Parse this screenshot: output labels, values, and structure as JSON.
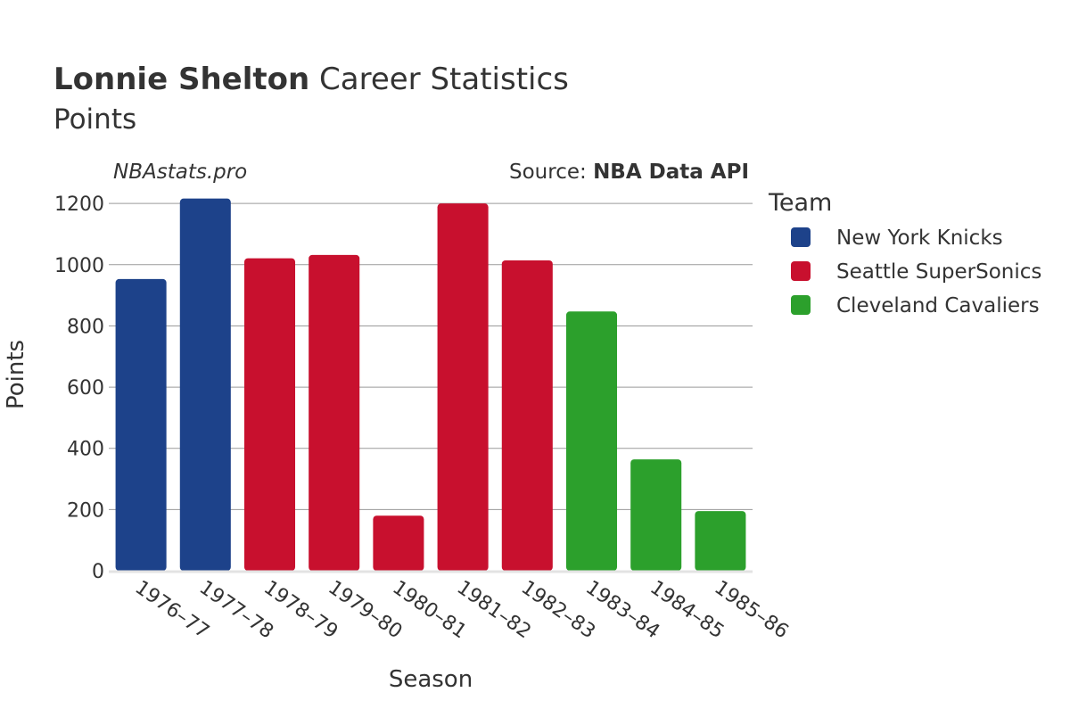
{
  "header": {
    "title_bold": "Lonnie Shelton",
    "title_rest": " Career Statistics",
    "subtitle": "Points",
    "watermark": "NBAstats.pro",
    "source_prefix": "Source: ",
    "source_bold": "NBA Data API"
  },
  "chart_data": {
    "type": "bar",
    "xlabel": "Season",
    "ylabel": "Points",
    "ylim": [
      0,
      1250
    ],
    "yticks": [
      0,
      200,
      400,
      600,
      800,
      1000,
      1200
    ],
    "grid": true,
    "legend_title": "Team",
    "legend_position": "right",
    "categories": [
      "1976–77",
      "1977–78",
      "1978–79",
      "1979–80",
      "1980–81",
      "1981–82",
      "1982–83",
      "1983–84",
      "1984–85",
      "1985–86"
    ],
    "values": [
      953,
      1216,
      1021,
      1032,
      180,
      1200,
      1014,
      847,
      364,
      195
    ],
    "teams": [
      "New York Knicks",
      "New York Knicks",
      "Seattle SuperSonics",
      "Seattle SuperSonics",
      "Seattle SuperSonics",
      "Seattle SuperSonics",
      "Seattle SuperSonics",
      "Cleveland Cavaliers",
      "Cleveland Cavaliers",
      "Cleveland Cavaliers"
    ],
    "series": [
      {
        "name": "New York Knicks",
        "color": "#1d428a"
      },
      {
        "name": "Seattle SuperSonics",
        "color": "#c8102e"
      },
      {
        "name": "Cleveland Cavaliers",
        "color": "#2ca02c"
      }
    ]
  }
}
